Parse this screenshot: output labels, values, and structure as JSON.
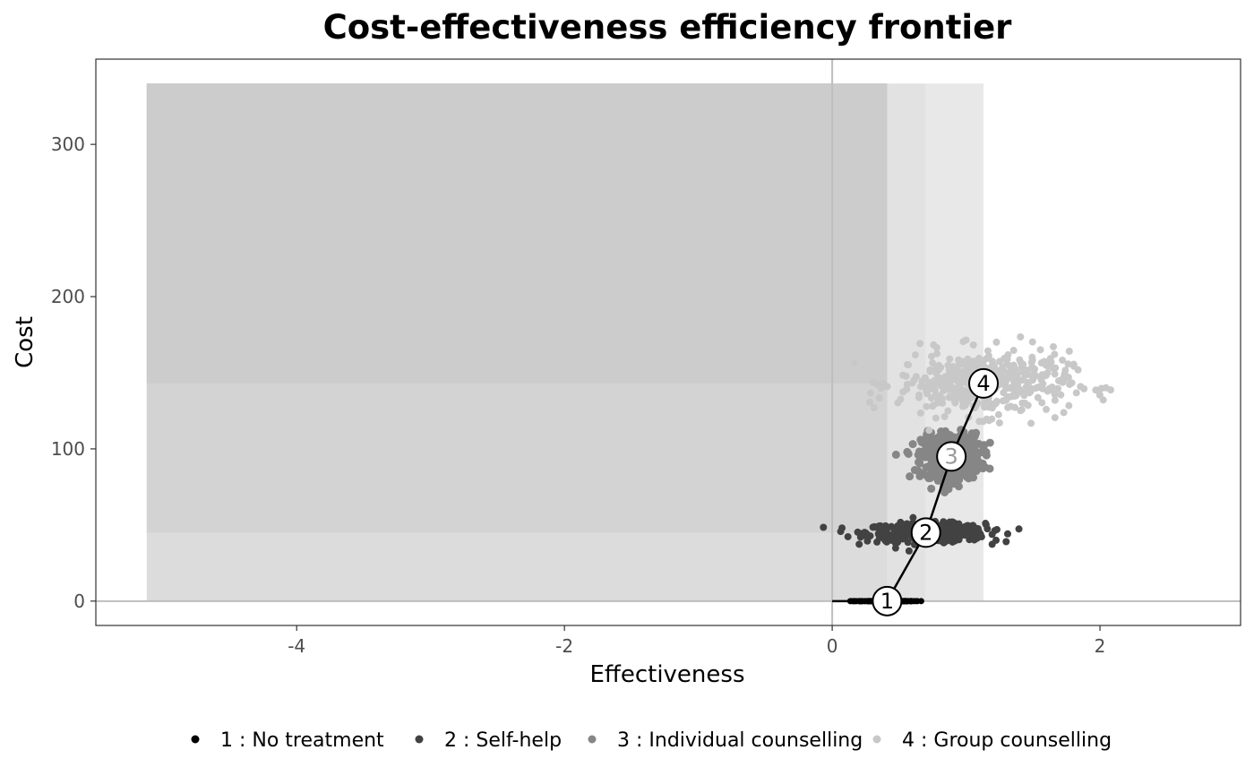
{
  "chart_data": {
    "type": "scatter",
    "title": "Cost-effectiveness efficiency frontier",
    "xlabel": "Effectiveness",
    "ylabel": "Cost",
    "xlim": [
      -5.5,
      3.05
    ],
    "ylim": [
      -16,
      356
    ],
    "x_ticks": [
      -4,
      -2,
      0,
      2
    ],
    "y_ticks": [
      0,
      100,
      200,
      300
    ],
    "x_tick_labels": [
      "-4",
      "-2",
      "0",
      "2"
    ],
    "y_tick_labels": [
      "0",
      "100",
      "200",
      "300"
    ],
    "grid": false,
    "legend_position": "bottom",
    "shaded_regions": [
      {
        "x": [
          -5.12,
          0.41
        ],
        "y": [
          0,
          340
        ],
        "color": "#dcdcdc"
      },
      {
        "x": [
          0.41,
          0.7
        ],
        "y": [
          0,
          340
        ],
        "color": "#e2e2e2"
      },
      {
        "x": [
          0.7,
          1.13
        ],
        "y": [
          0,
          340
        ],
        "color": "#e8e8e8"
      },
      {
        "x": [
          -5.12,
          0.41
        ],
        "y": [
          45,
          340
        ],
        "color": "#d3d3d3"
      },
      {
        "x": [
          -5.12,
          0.41
        ],
        "y": [
          143,
          340
        ],
        "color": "#cccccc"
      }
    ],
    "reference_lines": {
      "x": 0,
      "y": 0,
      "color": "#bebebe"
    },
    "series": [
      {
        "name": "1 : No treatment",
        "color": "#000000",
        "mean": {
          "x": 0.41,
          "y": 0
        },
        "spread": {
          "x": 0.12,
          "y": 0
        },
        "n": 170,
        "point_size": 3.5
      },
      {
        "name": "2 : Self-help",
        "color": "#424242",
        "mean": {
          "x": 0.7,
          "y": 45
        },
        "spread": {
          "x": 0.22,
          "y": 3.0
        },
        "n": 450,
        "point_size": 4
      },
      {
        "name": "3 : Individual counselling",
        "color": "#868686",
        "mean": {
          "x": 0.89,
          "y": 95
        },
        "spread": {
          "x": 0.11,
          "y": 7.5
        },
        "n": 500,
        "point_size": 4.5
      },
      {
        "name": "4 : Group counselling",
        "color": "#c8c8c8",
        "mean": {
          "x": 1.13,
          "y": 143
        },
        "spread": {
          "x": 0.32,
          "y": 10.5
        },
        "n": 450,
        "point_size": 4
      }
    ],
    "frontier": {
      "points": [
        {
          "label": "1",
          "x": 0.41,
          "y": 0,
          "text_color": "#000000"
        },
        {
          "label": "2",
          "x": 0.7,
          "y": 45,
          "text_color": "#000000"
        },
        {
          "label": "3",
          "x": 0.89,
          "y": 95,
          "text_color": "#9a9a9a"
        },
        {
          "label": "4",
          "x": 1.13,
          "y": 143,
          "text_color": "#000000"
        }
      ],
      "origin": {
        "x": 0,
        "y": 0
      }
    }
  }
}
